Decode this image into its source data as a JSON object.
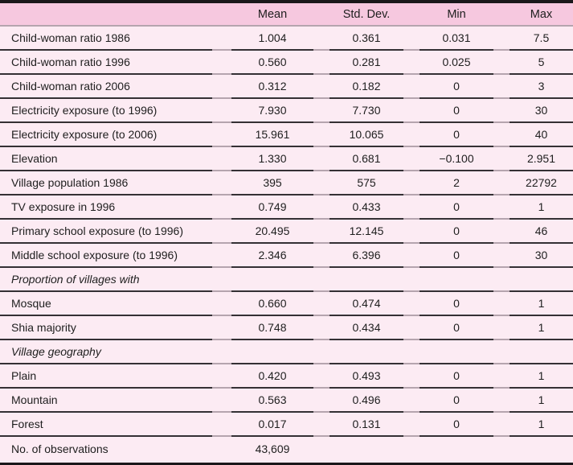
{
  "colors": {
    "header_bg": "#f6c8df",
    "row_bg": "#fcebf3",
    "frame": "#1a171a",
    "rule_dark": "#343034",
    "rule_light": "#b5a4ae"
  },
  "chart_data": {
    "type": "table",
    "title": "",
    "columns": [
      "Mean",
      "Std. Dev.",
      "Min",
      "Max"
    ],
    "rows": [
      {
        "type": "data",
        "label": "Child-woman ratio 1986",
        "mean": "1.004",
        "sd": "0.361",
        "min": "0.031",
        "max": "7.5"
      },
      {
        "type": "data",
        "label": "Child-woman ratio 1996",
        "mean": "0.560",
        "sd": "0.281",
        "min": "0.025",
        "max": "5"
      },
      {
        "type": "data",
        "label": "Child-woman ratio 2006",
        "mean": "0.312",
        "sd": "0.182",
        "min": "0",
        "max": "3"
      },
      {
        "type": "data",
        "label": "Electricity exposure (to 1996)",
        "mean": "7.930",
        "sd": "7.730",
        "min": "0",
        "max": "30"
      },
      {
        "type": "data",
        "label": "Electricity exposure (to 2006)",
        "mean": "15.961",
        "sd": "10.065",
        "min": "0",
        "max": "40"
      },
      {
        "type": "data",
        "label": "Elevation",
        "mean": "1.330",
        "sd": "0.681",
        "min": "−0.100",
        "max": "2.951"
      },
      {
        "type": "data",
        "label": "Village population 1986",
        "mean": "395",
        "sd": "575",
        "min": "2",
        "max": "22792"
      },
      {
        "type": "data",
        "label": "TV exposure in 1996",
        "mean": "0.749",
        "sd": "0.433",
        "min": "0",
        "max": "1"
      },
      {
        "type": "data",
        "label": "Primary school exposure (to 1996)",
        "mean": "20.495",
        "sd": "12.145",
        "min": "0",
        "max": "46"
      },
      {
        "type": "data",
        "label": "Middle school exposure (to 1996)",
        "mean": "2.346",
        "sd": "6.396",
        "min": "0",
        "max": "30"
      },
      {
        "type": "section",
        "label": "Proportion of villages with",
        "mean": "",
        "sd": "",
        "min": "",
        "max": ""
      },
      {
        "type": "data",
        "label": "Mosque",
        "mean": "0.660",
        "sd": "0.474",
        "min": "0",
        "max": "1"
      },
      {
        "type": "data",
        "label": "Shia majority",
        "mean": "0.748",
        "sd": "0.434",
        "min": "0",
        "max": "1"
      },
      {
        "type": "section",
        "label": "Village geography",
        "mean": "",
        "sd": "",
        "min": "",
        "max": ""
      },
      {
        "type": "data",
        "label": "Plain",
        "mean": "0.420",
        "sd": "0.493",
        "min": "0",
        "max": "1"
      },
      {
        "type": "data",
        "label": "Mountain",
        "mean": "0.563",
        "sd": "0.496",
        "min": "0",
        "max": "1"
      },
      {
        "type": "data",
        "label": "Forest",
        "mean": "0.017",
        "sd": "0.131",
        "min": "0",
        "max": "1"
      },
      {
        "type": "data",
        "label": "No. of observations",
        "mean": "43,609",
        "sd": "",
        "min": "",
        "max": ""
      }
    ]
  }
}
